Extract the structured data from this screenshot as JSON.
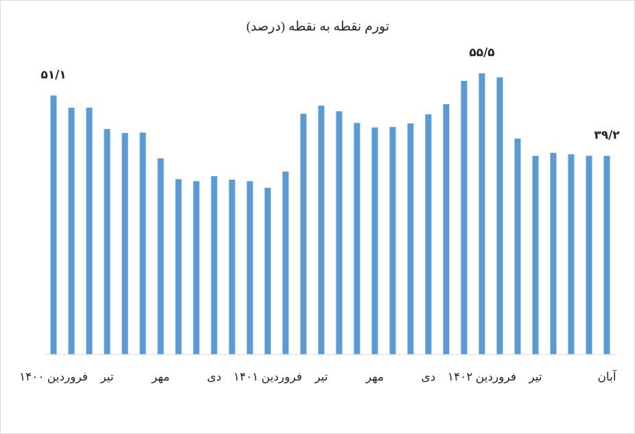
{
  "chart_data": {
    "type": "bar",
    "title": "تورم نقطه به نقطه (درصد)",
    "categories": [
      "فروردین ۱۴۰۰",
      null,
      null,
      "تیر",
      null,
      null,
      "مهر",
      null,
      null,
      "دی",
      null,
      null,
      "فروردین ۱۴۰۱",
      null,
      null,
      "تیر",
      null,
      null,
      "مهر",
      null,
      null,
      "دی",
      null,
      null,
      "فروردین ۱۴۰۲",
      null,
      null,
      "تیر",
      null,
      null,
      null,
      "آبان"
    ],
    "values": [
      51.1,
      48.7,
      48.7,
      44.5,
      43.7,
      43.8,
      38.7,
      34.6,
      34.2,
      35.2,
      34.5,
      34.2,
      32.9,
      36.1,
      47.5,
      49.1,
      48.0,
      45.7,
      44.8,
      44.9,
      45.6,
      47.4,
      49.4,
      54.0,
      55.5,
      54.7,
      42.6,
      39.2,
      39.8,
      39.5,
      39.2,
      39.2
    ],
    "value_labels": [
      "۵۱/۱",
      null,
      null,
      null,
      null,
      null,
      null,
      null,
      null,
      null,
      null,
      null,
      null,
      null,
      null,
      null,
      null,
      null,
      null,
      null,
      null,
      null,
      null,
      null,
      "۵۵/۵",
      null,
      null,
      null,
      null,
      null,
      null,
      "۳۹/۲"
    ],
    "color": "#5b9bd5",
    "ylim": [
      0,
      60
    ]
  }
}
